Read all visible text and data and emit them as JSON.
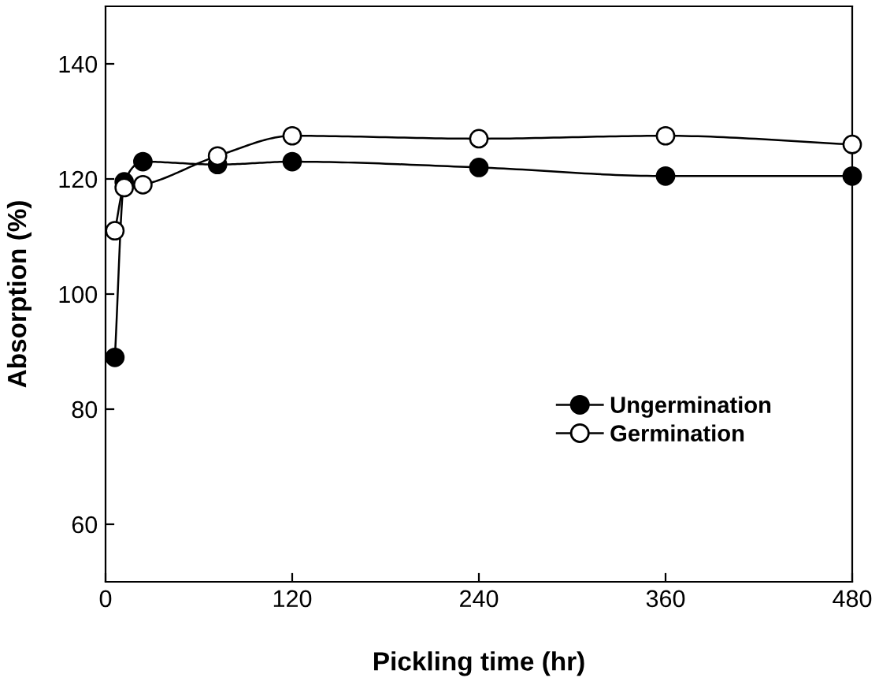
{
  "chart_data": {
    "type": "line",
    "xlabel": "Pickling time (hr)",
    "ylabel": "Absorption (%)",
    "x": [
      6,
      12,
      24,
      72,
      120,
      240,
      360,
      480
    ],
    "series": [
      {
        "name": "Ungermination",
        "color": "#000000",
        "values": [
          89,
          119.5,
          123,
          122.5,
          123,
          122,
          120.5,
          120.5
        ]
      },
      {
        "name": "Germination",
        "color": "#000000",
        "values": [
          111,
          118.5,
          119,
          124,
          127.5,
          127,
          127.5,
          126
        ]
      }
    ],
    "xlim": [
      0,
      480
    ],
    "xticks": [
      0,
      120,
      240,
      360,
      480
    ],
    "ylim": [
      50,
      150
    ],
    "yticks": [
      60,
      80,
      100,
      120,
      140
    ],
    "marker": "circle",
    "line_style": "solid",
    "grid": false,
    "legend": "bottom right"
  }
}
